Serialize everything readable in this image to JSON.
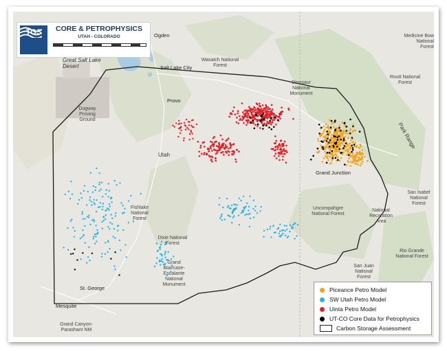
{
  "title": {
    "logo_text": "TGS",
    "main": "CORE & PETROPHYSICS",
    "sub": "UTAH - COLORADO"
  },
  "legend": {
    "items": [
      {
        "label": "Piceance Petro Model",
        "color": "#f5a316",
        "symbol": "dot"
      },
      {
        "label": "SW Utah Petro Model",
        "color": "#1fb4ea",
        "symbol": "dot"
      },
      {
        "label": "Uinta Petro Model",
        "color": "#e41e26",
        "symbol": "dot"
      },
      {
        "label": "UT-CO Core Data for Petrophysics",
        "color": "#000000",
        "symbol": "dot"
      },
      {
        "label": "Carbon Storage Assessment",
        "color": "#222222",
        "symbol": "box"
      }
    ]
  },
  "place_labels": {
    "ogden": "Ogden",
    "great_salt_lake_desert": "Great Salt Lake Desert",
    "salt_lake_city": "Salt Lake City",
    "wasatch_forest": "Wasatch National Forest",
    "provo": "Provo",
    "dugway": "Dugway Proving Ground",
    "dinosaur": "Dinosaur National Monument",
    "routt": "Routt National Forest",
    "medicine_bow": "Medicine Bow National Forest",
    "park_range": "Park Range",
    "utah": "Utah",
    "grand_junction": "Grand Junction",
    "fishlake": "Fishlake National Forest",
    "uncompahgre": "Uncompahgre National Forest",
    "san_isabel": "San Isabel National Forest",
    "national_recreation_area": "National Recreation Area",
    "dixie": "Dixie National Forest",
    "grand_staircase": "Grand Staircase-Escalante National Monument",
    "rio_grande": "Rio Grande National Forest",
    "san_juan": "San Juan National Forest",
    "st_george": "St. George",
    "mesquite": "Mesquite",
    "grand_canyon": "Grand Canyon-Parashant NM"
  },
  "colors": {
    "piceance": "#f5a316",
    "sw_utah": "#1fb4ea",
    "uinta": "#e41e26",
    "core": "#000000",
    "terrain": "#e9e7e1",
    "forest": "#cfdcc0",
    "water": "#a9cce3"
  }
}
